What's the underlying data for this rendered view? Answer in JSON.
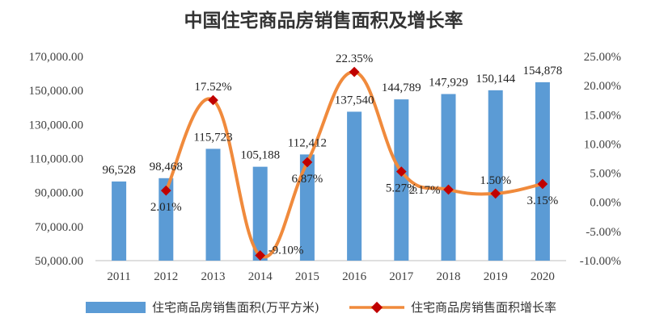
{
  "chart_data": {
    "type": "bar+line",
    "title": "中国住宅商品房销售面积及增长率",
    "categories": [
      "2011",
      "2012",
      "2013",
      "2014",
      "2015",
      "2016",
      "2017",
      "2018",
      "2019",
      "2020"
    ],
    "series": [
      {
        "name": "住宅商品房销售面积(万平方米)",
        "type": "bar",
        "axis": "left",
        "color": "#5b9bd5",
        "values": [
          96528,
          98468,
          115723,
          105188,
          112412,
          137540,
          144789,
          147929,
          150144,
          154878
        ],
        "labels": [
          "96,528",
          "98,468",
          "115,723",
          "105,188",
          "112,412",
          "137,540",
          "144,789",
          "147,929",
          "150,144",
          "154,878"
        ]
      },
      {
        "name": "住宅商品房销售面积增长率",
        "type": "line",
        "axis": "right",
        "color": "#f08a3c",
        "marker_color": "#c00000",
        "values": [
          null,
          2.01,
          17.52,
          -9.1,
          6.87,
          22.35,
          5.27,
          2.17,
          1.5,
          3.15
        ],
        "labels": [
          "",
          "2.01%",
          "17.52%",
          "-9.10%",
          "6.87%",
          "22.35%",
          "5.27%",
          "2.17%",
          "1.50%",
          "3.15%"
        ]
      }
    ],
    "left_axis": {
      "min": 50000,
      "max": 170000,
      "ticks": [
        50000,
        70000,
        90000,
        110000,
        130000,
        150000,
        170000
      ],
      "tick_labels": [
        "50,000.00",
        "70,000.00",
        "90,000.00",
        "110,000.00",
        "130,000.00",
        "150,000.00",
        "170,000.00"
      ]
    },
    "right_axis": {
      "min": -10,
      "max": 25,
      "ticks": [
        -10,
        -5,
        0,
        5,
        10,
        15,
        20,
        25
      ],
      "tick_labels": [
        "-10.00%",
        "-5.00%",
        "0.00%",
        "5.00%",
        "10.00%",
        "15.00%",
        "20.00%",
        "25.00%"
      ]
    },
    "grid": false,
    "legend_position": "bottom"
  }
}
